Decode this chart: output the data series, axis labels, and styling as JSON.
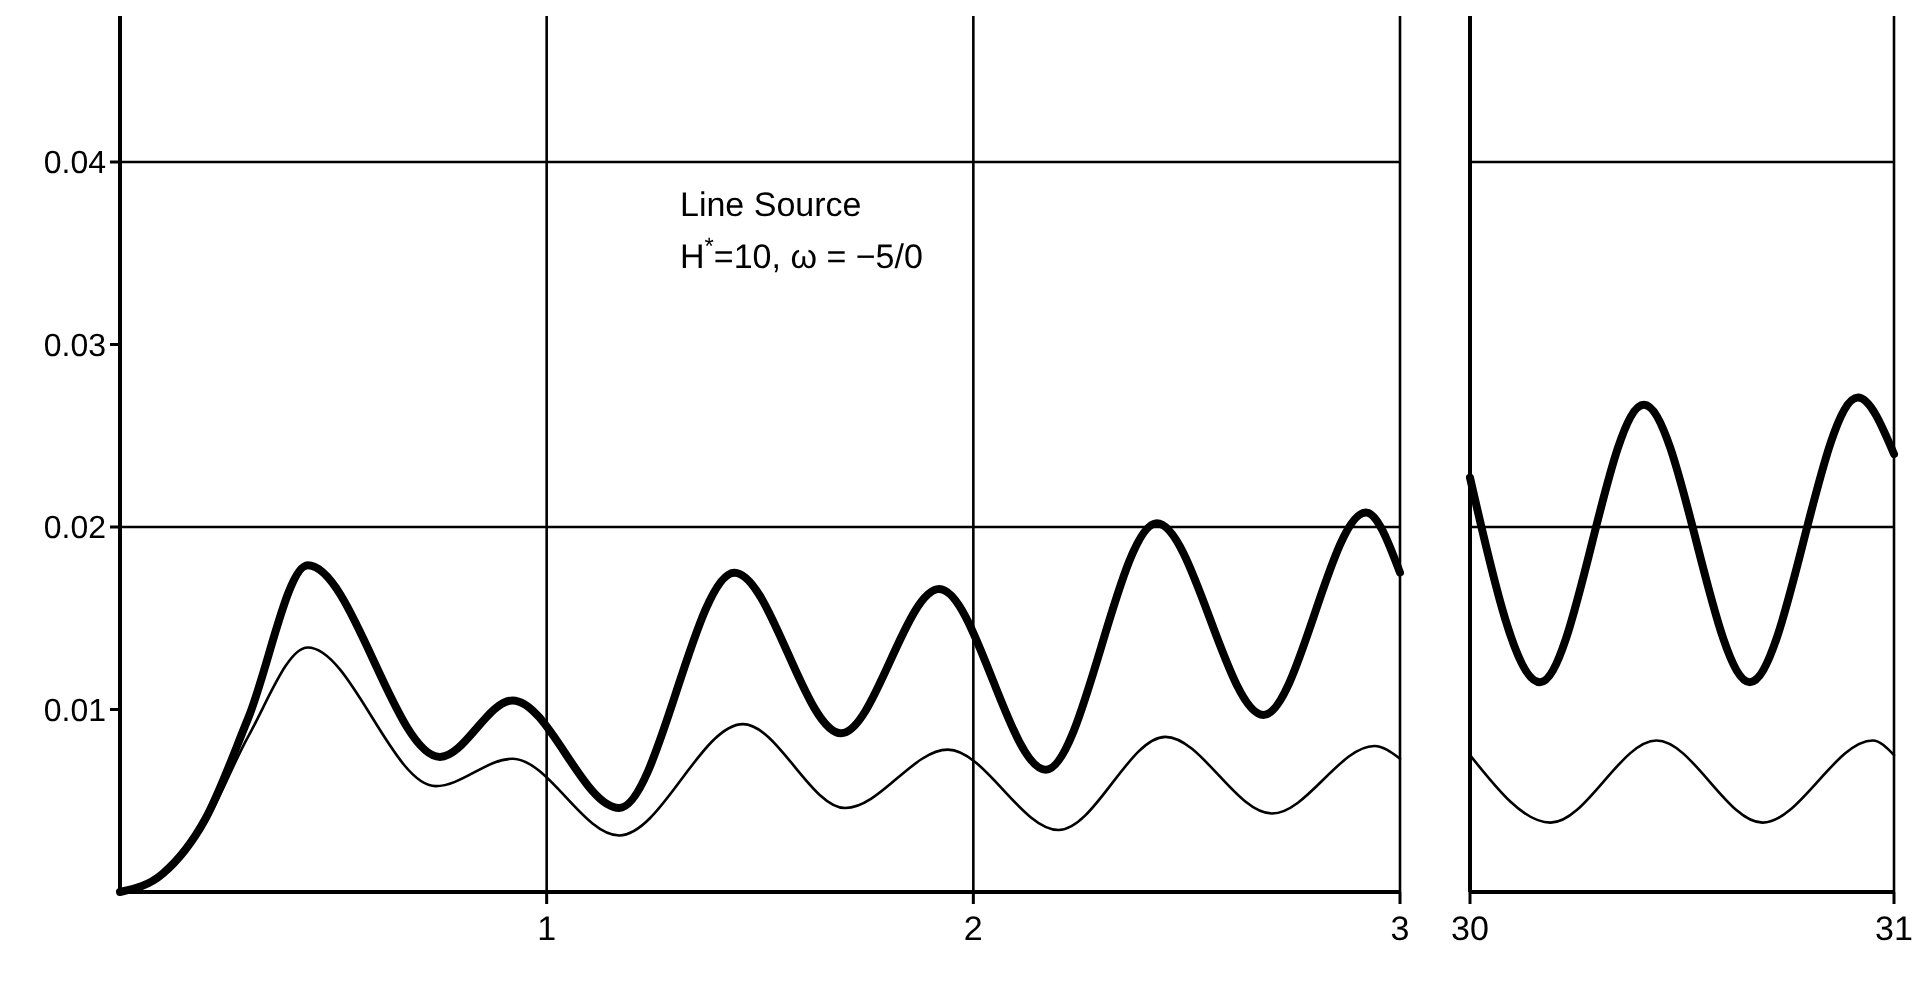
{
  "chart_data": [
    {
      "type": "line",
      "annotations": [
        "Line Source",
        "H$^{*}$=10,  ω = −5/0"
      ],
      "xlim": [
        0,
        3
      ],
      "ylim": [
        0,
        0.048
      ],
      "xticks": [
        1,
        2,
        3
      ],
      "yticks": [
        0.01,
        0.02,
        0.03,
        0.04
      ],
      "grid": false,
      "ref_lines": [
        {
          "axis": "x",
          "value": 1
        },
        {
          "axis": "x",
          "value": 2
        },
        {
          "axis": "y",
          "value": 0.02
        },
        {
          "axis": "y",
          "value": 0.04
        }
      ],
      "series": [
        {
          "color": "#000000",
          "x": [
            0,
            0.1,
            0.2,
            0.3,
            0.44,
            0.75,
            0.92,
            1.17,
            1.44,
            1.69,
            1.92,
            2.17,
            2.43,
            2.68,
            2.92,
            3
          ],
          "values": [
            0,
            0.001,
            0.004,
            0.0095,
            0.0179,
            0.0074,
            0.0105,
            0.0046,
            0.0175,
            0.0087,
            0.0166,
            0.0067,
            0.0202,
            0.0097,
            0.0208,
            0.0175
          ]
        },
        {
          "color": "#000000",
          "x": [
            0,
            0.1,
            0.2,
            0.3,
            0.44,
            0.74,
            0.92,
            1.17,
            1.46,
            1.7,
            1.94,
            2.2,
            2.45,
            2.7,
            2.94,
            3
          ],
          "values": [
            0,
            0.001,
            0.0038,
            0.0085,
            0.0134,
            0.0058,
            0.0073,
            0.0031,
            0.0092,
            0.0046,
            0.0078,
            0.0034,
            0.0085,
            0.0043,
            0.008,
            0.0073
          ]
        }
      ]
    },
    {
      "type": "line",
      "xlim": [
        30,
        31
      ],
      "ylim": [
        0,
        0.048
      ],
      "xticks": [
        30,
        31
      ],
      "tick_labels": "x",
      "grid": false,
      "ref_lines": [
        {
          "axis": "y",
          "value": 0.02
        },
        {
          "axis": "y",
          "value": 0.04
        }
      ],
      "series": [
        {
          "color": "#000000",
          "x": [
            30,
            30.165,
            30.41,
            30.66,
            30.915,
            31
          ],
          "values": [
            0.0227,
            0.0115,
            0.0267,
            0.0115,
            0.0271,
            0.024
          ]
        },
        {
          "color": "#000000",
          "x": [
            30,
            30.19,
            30.44,
            30.69,
            30.95,
            31
          ],
          "values": [
            0.0075,
            0.0038,
            0.0083,
            0.0038,
            0.0083,
            0.0075
          ]
        }
      ]
    }
  ]
}
